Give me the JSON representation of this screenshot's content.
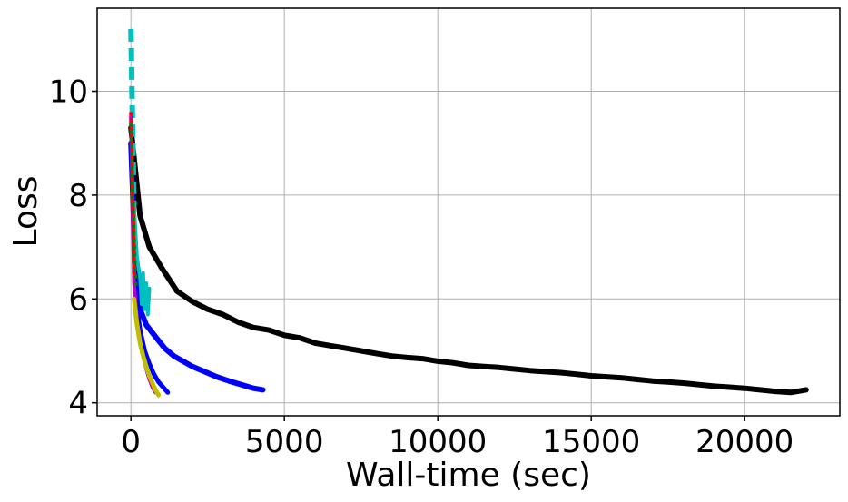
{
  "chart_data": {
    "type": "line",
    "title": "",
    "xlabel": "Wall-time (sec)",
    "ylabel": "Loss",
    "xlim": [
      -1100,
      23100
    ],
    "ylim": [
      3.75,
      11.6
    ],
    "xticks": [
      0,
      5000,
      10000,
      15000,
      20000
    ],
    "yticks": [
      4,
      6,
      8,
      10
    ],
    "grid": true,
    "legend": "none",
    "series": [
      {
        "color": "#000000",
        "dash": "solid",
        "width": 6,
        "x": [
          0,
          300,
          600,
          1000,
          1500,
          2000,
          2500,
          3000,
          3500,
          4000,
          4500,
          5000,
          5500,
          6000,
          6500,
          7000,
          7500,
          8000,
          8500,
          9000,
          9500,
          10000,
          10500,
          11000,
          11500,
          12000,
          12500,
          13000,
          13500,
          14000,
          14500,
          15000,
          15500,
          16000,
          16500,
          17000,
          17500,
          18000,
          18500,
          19000,
          19500,
          20000,
          20500,
          21000,
          21500,
          22000
        ],
        "y": [
          9.3,
          7.6,
          7.0,
          6.6,
          6.15,
          5.95,
          5.8,
          5.7,
          5.55,
          5.45,
          5.4,
          5.3,
          5.25,
          5.15,
          5.1,
          5.05,
          5.0,
          4.95,
          4.9,
          4.87,
          4.85,
          4.8,
          4.77,
          4.72,
          4.7,
          4.68,
          4.65,
          4.62,
          4.6,
          4.58,
          4.55,
          4.52,
          4.5,
          4.48,
          4.45,
          4.42,
          4.4,
          4.38,
          4.35,
          4.32,
          4.3,
          4.28,
          4.25,
          4.22,
          4.2,
          4.25
        ]
      },
      {
        "color": "#0000ff",
        "dash": "solid",
        "width": 6,
        "x": [
          0,
          150,
          300,
          500,
          700,
          900,
          1100,
          1400,
          1700,
          2000,
          2400,
          2800,
          3200,
          3600,
          4000,
          4300
        ],
        "y": [
          9.0,
          6.5,
          5.8,
          5.5,
          5.35,
          5.2,
          5.05,
          4.9,
          4.8,
          4.7,
          4.6,
          4.5,
          4.42,
          4.35,
          4.28,
          4.25
        ]
      },
      {
        "color": "#0000ff",
        "dash": "solid",
        "width": 5,
        "x": [
          150,
          300,
          450,
          600,
          750,
          900,
          1050,
          1200
        ],
        "y": [
          6.0,
          5.4,
          5.0,
          4.75,
          4.55,
          4.4,
          4.3,
          4.2
        ]
      },
      {
        "color": "#00bfbf",
        "dash": "dashed",
        "width": 6,
        "x": [
          0,
          20,
          40,
          60,
          80,
          100
        ],
        "y": [
          11.2,
          10.5,
          9.8,
          9.2,
          8.5,
          7.8
        ]
      },
      {
        "color": "#00bfbf",
        "dash": "solid",
        "width": 4,
        "x": [
          100,
          200,
          300,
          350,
          400,
          450,
          500,
          550,
          600
        ],
        "y": [
          7.8,
          6.8,
          6.4,
          5.9,
          6.5,
          5.8,
          6.3,
          5.7,
          6.2
        ]
      },
      {
        "color": "#bf00bf",
        "dash": "solid",
        "width": 4,
        "x": [
          0,
          100,
          200,
          300,
          400,
          500,
          600,
          700,
          800
        ],
        "y": [
          9.5,
          6.3,
          5.6,
          5.2,
          4.9,
          4.65,
          4.45,
          4.3,
          4.2
        ]
      },
      {
        "color": "#ff0000",
        "dash": "dotted",
        "width": 4,
        "x": [
          0,
          30,
          60,
          90,
          120
        ],
        "y": [
          9.6,
          8.8,
          8.0,
          7.2,
          6.4
        ]
      },
      {
        "color": "#008000",
        "dash": "dotted",
        "width": 4,
        "x": [
          0,
          40,
          80,
          120,
          160
        ],
        "y": [
          9.4,
          8.4,
          7.5,
          6.8,
          6.2
        ]
      },
      {
        "color": "#bfbf00",
        "dash": "solid",
        "width": 5,
        "x": [
          100,
          200,
          300,
          400,
          500,
          600,
          700,
          800,
          900
        ],
        "y": [
          6.0,
          5.5,
          5.15,
          4.9,
          4.7,
          4.52,
          4.38,
          4.25,
          4.15
        ]
      }
    ]
  }
}
